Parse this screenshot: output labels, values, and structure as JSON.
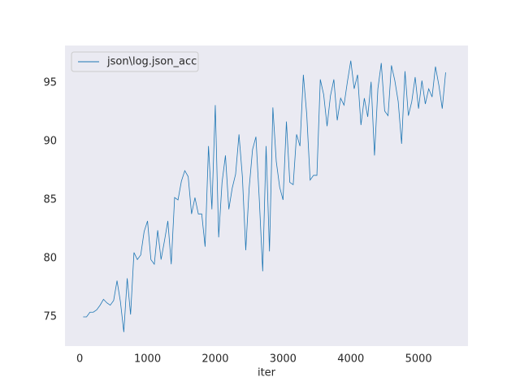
{
  "chart_data": {
    "type": "line",
    "xlabel": "iter",
    "x": [
      50,
      100,
      150,
      200,
      250,
      300,
      350,
      400,
      450,
      500,
      550,
      600,
      650,
      700,
      750,
      800,
      850,
      900,
      950,
      1000,
      1050,
      1100,
      1150,
      1200,
      1250,
      1300,
      1350,
      1400,
      1450,
      1500,
      1550,
      1600,
      1650,
      1700,
      1750,
      1800,
      1850,
      1900,
      1950,
      2000,
      2050,
      2100,
      2150,
      2200,
      2250,
      2300,
      2350,
      2400,
      2450,
      2500,
      2550,
      2600,
      2650,
      2700,
      2750,
      2800,
      2850,
      2900,
      2950,
      3000,
      3050,
      3100,
      3150,
      3200,
      3250,
      3300,
      3350,
      3400,
      3450,
      3500,
      3550,
      3600,
      3650,
      3700,
      3750,
      3800,
      3850,
      3900,
      3950,
      4000,
      4050,
      4100,
      4150,
      4200,
      4250,
      4300,
      4350,
      4400,
      4450,
      4500,
      4550,
      4600,
      4650,
      4700,
      4750,
      4800,
      4850,
      4900,
      4950,
      5000,
      5050,
      5100,
      5150,
      5200,
      5250,
      5300,
      5350,
      5400
    ],
    "series": [
      {
        "name": "json\\log.json_acc",
        "color": "#1f77b4",
        "values": [
          75.0,
          75.0,
          75.4,
          75.4,
          75.6,
          76.0,
          76.5,
          76.2,
          76.0,
          76.4,
          78.1,
          76.3,
          73.7,
          78.3,
          75.2,
          80.5,
          79.9,
          80.3,
          82.3,
          83.2,
          79.9,
          79.5,
          82.4,
          79.9,
          81.5,
          83.2,
          79.5,
          85.2,
          85.0,
          86.6,
          87.5,
          87.0,
          83.8,
          85.2,
          83.8,
          83.8,
          81.0,
          89.6,
          84.2,
          93.1,
          81.8,
          86.5,
          88.8,
          84.2,
          86.0,
          87.2,
          90.6,
          87.0,
          80.7,
          86.0,
          89.3,
          90.4,
          85.0,
          78.9,
          89.6,
          80.6,
          92.9,
          88.3,
          86.1,
          85.0,
          91.7,
          86.5,
          86.3,
          90.6,
          89.6,
          95.7,
          92.3,
          86.7,
          87.1,
          87.1,
          95.3,
          94.0,
          91.3,
          93.9,
          95.3,
          91.8,
          93.7,
          93.1,
          95.1,
          96.9,
          94.5,
          95.7,
          91.4,
          93.7,
          92.1,
          95.1,
          88.8,
          94.5,
          96.7,
          92.6,
          92.2,
          96.5,
          95.2,
          93.4,
          89.8,
          96.0,
          92.2,
          93.4,
          95.5,
          92.8,
          95.2,
          93.2,
          94.5,
          93.8,
          96.4,
          94.8,
          92.8,
          95.9
        ]
      }
    ],
    "xlim": [
      -218,
      5730
    ],
    "ylim": [
      72.5,
      98.2
    ],
    "xticks": [
      0,
      1000,
      2000,
      3000,
      4000,
      5000
    ],
    "yticks": [
      75,
      80,
      85,
      90,
      95
    ],
    "grid": false,
    "legend": "upper left",
    "background": "#eaeaf2"
  }
}
